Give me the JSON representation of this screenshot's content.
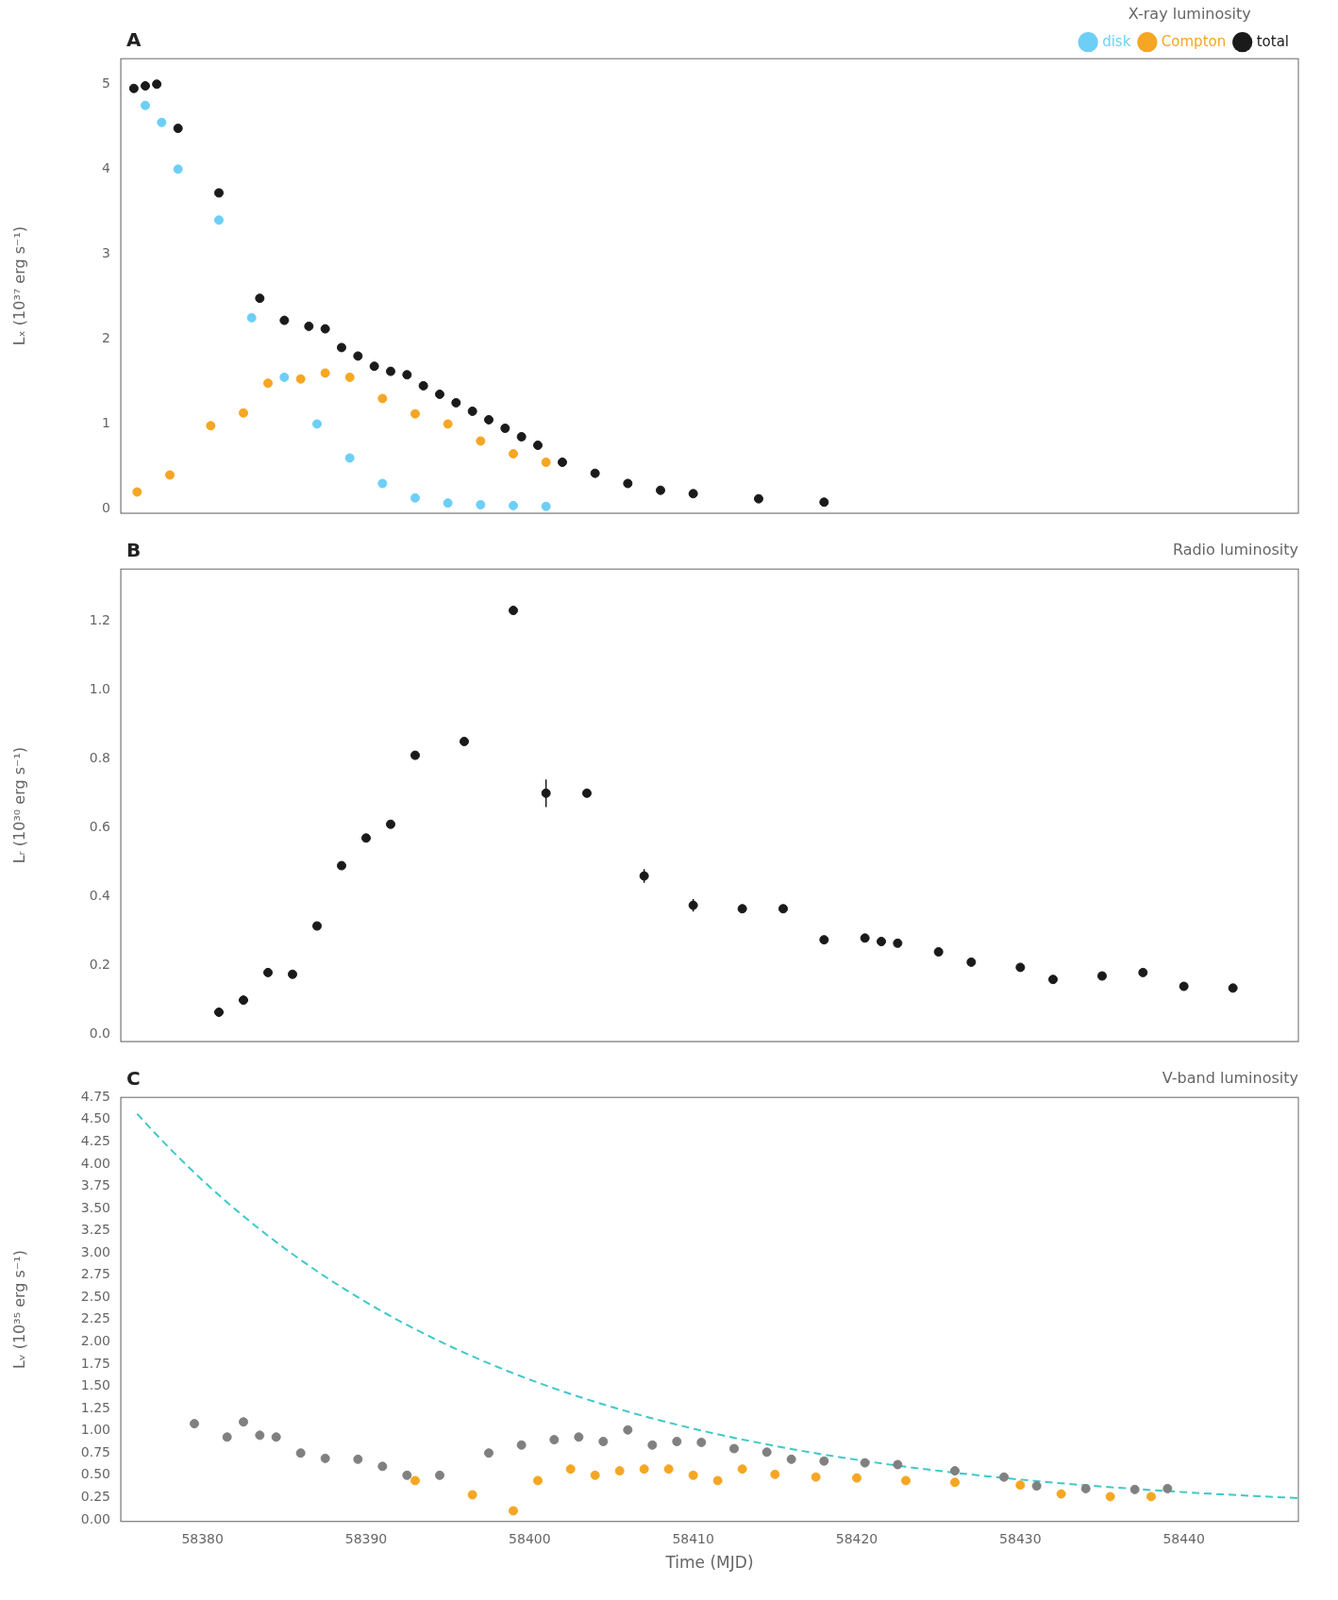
{
  "chart_data": [
    {
      "type": "scatter",
      "title": "X-ray luminosity",
      "ylabel": "Lₓ (10³⁷ erg s⁻¹)",
      "annotations": [
        "A"
      ],
      "xlim": [
        58375.0,
        58447.0
      ],
      "xticks": [
        58380,
        58390,
        58400,
        58410,
        58420,
        58430,
        58440
      ],
      "ylim": [
        -0.05,
        5.3
      ],
      "yticks": [
        0,
        1,
        2,
        3,
        4,
        5
      ],
      "grid": false,
      "legend": "upper right",
      "tick_labels": "y",
      "series": [
        {
          "name": "disk",
          "color": "#6DCFF6",
          "marker": "circle",
          "x": [
            58376.5,
            58377.5,
            58378.5,
            58381.0,
            58383.0,
            58385.0,
            58387.0,
            58389.0,
            58391.0,
            58393.0,
            58395.0,
            58397.0,
            58399.0,
            58401.0
          ],
          "values": [
            4.75,
            4.55,
            4.0,
            3.4,
            2.25,
            1.55,
            1.0,
            0.6,
            0.3,
            0.13,
            0.07,
            0.05,
            0.04,
            0.03
          ]
        },
        {
          "name": "Compton",
          "color": "#F5A623",
          "marker": "circle",
          "x": [
            58376.0,
            58378.0,
            58380.5,
            58382.5,
            58384.0,
            58386.0,
            58387.5,
            58389.0,
            58391.0,
            58393.0,
            58395.0,
            58397.0,
            58399.0,
            58401.0
          ],
          "values": [
            0.2,
            0.4,
            0.98,
            1.13,
            1.48,
            1.53,
            1.6,
            1.55,
            1.3,
            1.12,
            1.0,
            0.8,
            0.65,
            0.55
          ]
        },
        {
          "name": "total",
          "color": "#1a1a1a",
          "marker": "circle",
          "x": [
            58375.8,
            58376.5,
            58377.2,
            58378.5,
            58381.0,
            58383.5,
            58385.0,
            58386.5,
            58387.5,
            58388.5,
            58389.5,
            58390.5,
            58391.5,
            58392.5,
            58393.5,
            58394.5,
            58395.5,
            58396.5,
            58397.5,
            58398.5,
            58399.5,
            58400.5,
            58402.0,
            58404.0,
            58406.0,
            58408.0,
            58410.0,
            58414.0,
            58418.0
          ],
          "values": [
            4.95,
            4.98,
            5.0,
            4.48,
            3.72,
            2.48,
            2.22,
            2.15,
            2.12,
            1.9,
            1.8,
            1.68,
            1.62,
            1.58,
            1.45,
            1.35,
            1.25,
            1.15,
            1.05,
            0.95,
            0.85,
            0.75,
            0.55,
            0.42,
            0.3,
            0.22,
            0.18,
            0.12,
            0.08
          ]
        }
      ]
    },
    {
      "type": "scatter",
      "title": "Radio luminosity",
      "ylabel": "Lᵣ (10³⁰ erg s⁻¹)",
      "annotations": [
        "B"
      ],
      "xlim": [
        58375.0,
        58447.0
      ],
      "xticks": [
        58380,
        58390,
        58400,
        58410,
        58420,
        58430,
        58440
      ],
      "ylim": [
        -0.02,
        1.35
      ],
      "yticks": [
        {
          "value": 0,
          "label": "0.0"
        },
        0.2,
        0.4,
        0.6,
        0.8,
        {
          "value": 1,
          "label": "1.0"
        },
        1.2
      ],
      "grid": false,
      "tick_labels": "y",
      "series": [
        {
          "color": "#1a1a1a",
          "marker": "circle",
          "x": [
            58381.0,
            58382.5,
            58384.0,
            58385.5,
            58387.0,
            58388.5,
            58390.0,
            58391.5,
            58393.0,
            58396.0,
            58399.0,
            58403.5,
            58413.0,
            58415.5,
            58418.0,
            58420.5,
            58421.5,
            58422.5,
            58425.0,
            58427.0,
            58430.0,
            58432.0,
            58435.0,
            58437.5,
            58440.0,
            58443.0
          ],
          "values": [
            0.065,
            0.1,
            0.18,
            0.175,
            0.315,
            0.49,
            0.57,
            0.61,
            0.81,
            0.85,
            1.23,
            0.7,
            0.365,
            0.365,
            0.275,
            0.28,
            0.27,
            0.265,
            0.24,
            0.21,
            0.195,
            0.16,
            0.17,
            0.18,
            0.14,
            0.135
          ]
        },
        {
          "color": "#1a1a1a",
          "marker": "circle",
          "x": [
            58401.0,
            58407.0,
            58410.0
          ],
          "values": [
            0.7,
            0.46,
            0.375
          ],
          "yerr": [
            0.04,
            0.02,
            0.018
          ]
        },
        {
          "color": "#1a1a1a",
          "marker": "diamond",
          "x": [
            58381.0,
            58382.5
          ],
          "values": [
            0.065,
            0.1
          ],
          "yerr": [
            0.008,
            0.008
          ]
        }
      ]
    },
    {
      "type": "scatter",
      "title": "V-band luminosity",
      "xlabel": "Time (MJD)",
      "ylabel": "Lᵥ (10³⁵ erg s⁻¹)",
      "annotations": [
        "C"
      ],
      "xlim": [
        58375.0,
        58447.0
      ],
      "xticks": [
        58380,
        58390,
        58400,
        58410,
        58420,
        58430,
        58440
      ],
      "ylim": [
        -0.02,
        4.75
      ],
      "yticks": [
        {
          "value": 0,
          "label": "0.00"
        },
        0.25,
        {
          "value": 0.5,
          "label": "0.50"
        },
        0.75,
        {
          "value": 1,
          "label": "1.00"
        },
        1.25,
        {
          "value": 1.5,
          "label": "1.50"
        },
        1.75,
        {
          "value": 2,
          "label": "2.00"
        },
        2.25,
        {
          "value": 2.5,
          "label": "2.50"
        },
        2.75,
        {
          "value": 3,
          "label": "3.00"
        },
        3.25,
        {
          "value": 3.5,
          "label": "3.50"
        },
        3.75,
        {
          "value": 4,
          "label": "4.00"
        },
        4.25,
        {
          "value": 4.5,
          "label": "4.50"
        },
        4.75
      ],
      "grid": false,
      "series": [
        {
          "color": "#808080",
          "marker": "circle",
          "x": [
            58379.5,
            58381.5,
            58382.5,
            58383.5,
            58384.5,
            58386.0,
            58387.5,
            58389.5,
            58391.0,
            58392.5,
            58394.5,
            58397.5,
            58399.5,
            58401.5,
            58403.0,
            58404.5,
            58406.0,
            58407.5,
            58409.0,
            58410.5,
            58412.5,
            58414.5,
            58416.0,
            58418.0,
            58420.5,
            58422.5,
            58426.0,
            58429.0,
            58431.0,
            58434.0,
            58437.0,
            58439.0
          ],
          "values": [
            1.08,
            0.93,
            1.1,
            0.95,
            0.93,
            0.75,
            0.69,
            0.68,
            0.6,
            0.5,
            0.5,
            0.75,
            0.84,
            0.9,
            0.93,
            0.88,
            1.01,
            0.84,
            0.88,
            0.87,
            0.8,
            0.76,
            0.68,
            0.66,
            0.64,
            0.62,
            0.55,
            0.48,
            0.38,
            0.35,
            0.34,
            0.35
          ]
        },
        {
          "color": "#F5A623",
          "marker": "circle",
          "x": [
            58393.0,
            58396.5,
            58399.0,
            58400.5,
            58402.5,
            58404.0,
            58405.5,
            58407.0,
            58408.5,
            58410.0,
            58411.5,
            58413.0,
            58415.0,
            58417.5,
            58420.0,
            58423.0,
            58426.0,
            58430.0,
            58432.5,
            58435.5,
            58438.0
          ],
          "values": [
            0.44,
            0.28,
            0.1,
            0.44,
            0.57,
            0.5,
            0.55,
            0.57,
            0.57,
            0.5,
            0.44,
            0.57,
            0.51,
            0.48,
            0.47,
            0.44,
            0.42,
            0.39,
            0.29,
            0.26,
            0.26
          ]
        },
        {
          "type": "line",
          "line_style": "dashed",
          "color": "#40C8C8",
          "x": [
            58376,
            58377,
            58378,
            58379,
            58380,
            58381,
            58382,
            58383,
            58384,
            58385,
            58386,
            58387,
            58388,
            58389,
            58390,
            58391,
            58392,
            58393,
            58394,
            58395,
            58396,
            58397,
            58398,
            58399,
            58400,
            58401,
            58402,
            58403,
            58404,
            58405,
            58406,
            58407,
            58408,
            58409,
            58410,
            58411,
            58412,
            58413,
            58414,
            58415,
            58416,
            58417,
            58418,
            58419,
            58420,
            58421,
            58422,
            58423,
            58424,
            58425,
            58426,
            58427,
            58428,
            58429,
            58430,
            58431,
            58432,
            58433,
            58434,
            58435,
            58436,
            58437,
            58438,
            58439,
            58440,
            58441,
            58442,
            58443,
            58444,
            58445,
            58446,
            58447
          ],
          "values": [
            4.565,
            4.365,
            4.174,
            3.9914,
            3.8169,
            3.6502,
            3.4909,
            3.3387,
            3.1931,
            3.0542,
            2.9213,
            2.7944,
            2.6731,
            2.5572,
            2.4465,
            2.3406,
            2.2395,
            2.1429,
            2.0506,
            1.9623,
            1.878,
            1.7974,
            1.7205,
            1.6469,
            1.5766,
            1.5094,
            1.4452,
            1.3839,
            1.3253,
            1.2693,
            1.2158,
            1.1647,
            1.1158,
            1.0691,
            1.0245,
            0.9818,
            0.9411,
            0.9022,
            0.865,
            0.8294,
            0.7955,
            0.763,
            0.732,
            0.7023,
            0.674,
            0.6469,
            0.6211,
            0.5964,
            0.5728,
            0.5502,
            0.5286,
            0.508,
            0.4883,
            0.4695,
            0.4516,
            0.4344,
            0.418,
            0.4023,
            0.3873,
            0.373,
            0.3593,
            0.3462,
            0.3337,
            0.3218,
            0.3104,
            0.2995,
            0.289,
            0.2791,
            0.2696,
            0.2605,
            0.2518,
            0.2435
          ]
        }
      ]
    }
  ]
}
